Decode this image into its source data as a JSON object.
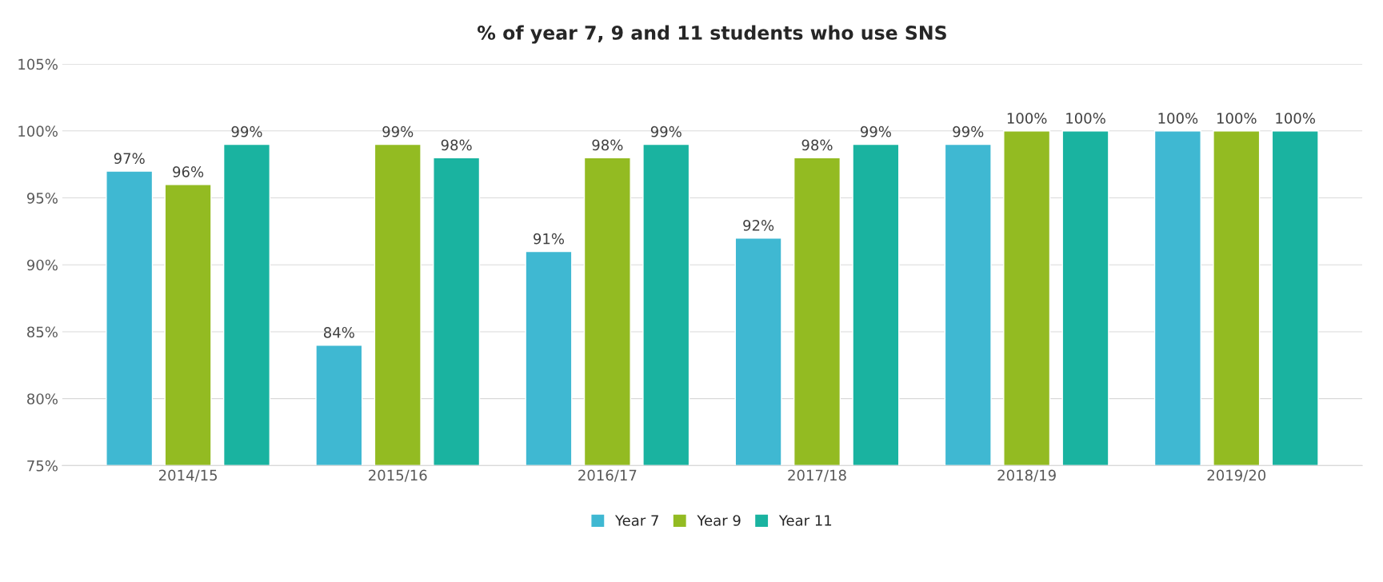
{
  "chart_data": {
    "type": "bar",
    "title": "% of year 7, 9 and 11 students who use SNS",
    "categories": [
      "2014/15",
      "2015/16",
      "2016/17",
      "2017/18",
      "2018/19",
      "2019/20"
    ],
    "series": [
      {
        "name": "Year 7",
        "color": "#3fb8d2",
        "values": [
          97,
          84,
          91,
          92,
          99,
          100
        ],
        "value_labels": [
          "97%",
          "84%",
          "91%",
          "92%",
          "99%",
          "100%"
        ]
      },
      {
        "name": "Year 9",
        "color": "#93bb22",
        "values": [
          96,
          99,
          98,
          98,
          100,
          100
        ],
        "value_labels": [
          "96%",
          "99%",
          "98%",
          "98%",
          "100%",
          "100%"
        ]
      },
      {
        "name": "Year 11",
        "color": "#1ab3a0",
        "values": [
          99,
          98,
          99,
          99,
          100,
          100
        ],
        "value_labels": [
          "99%",
          "98%",
          "99%",
          "99%",
          "100%",
          "100%"
        ]
      }
    ],
    "ylim": [
      75,
      105
    ],
    "yticks": [
      {
        "value": 75,
        "label": "75%"
      },
      {
        "value": 80,
        "label": "80%"
      },
      {
        "value": 85,
        "label": "85%"
      },
      {
        "value": 90,
        "label": "90%"
      },
      {
        "value": 95,
        "label": "95%"
      },
      {
        "value": 100,
        "label": "100%"
      },
      {
        "value": 105,
        "label": "105%"
      }
    ],
    "grid": "y",
    "legend": "bottom"
  }
}
